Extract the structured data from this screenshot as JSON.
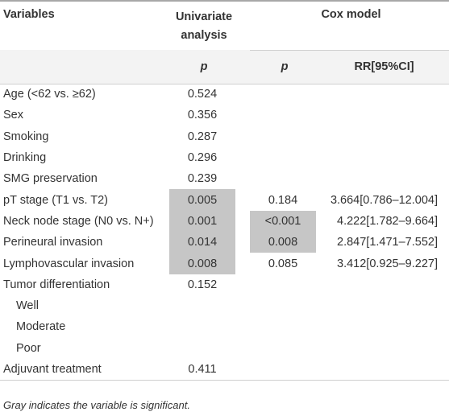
{
  "header": {
    "variables": "Variables",
    "univariate": "Univariate analysis",
    "cox": "Cox model",
    "p_univariate": "p",
    "p_cox": "p",
    "rr": "RR[95%CI]"
  },
  "rows": [
    {
      "variable": "Age (<62 vs. ≥62)",
      "p_uni": "0.524",
      "p_cox": "",
      "rr": "",
      "sig_uni": false,
      "sig_cox": false
    },
    {
      "variable": "Sex",
      "p_uni": "0.356",
      "p_cox": "",
      "rr": "",
      "sig_uni": false,
      "sig_cox": false
    },
    {
      "variable": "Smoking",
      "p_uni": "0.287",
      "p_cox": "",
      "rr": "",
      "sig_uni": false,
      "sig_cox": false
    },
    {
      "variable": "Drinking",
      "p_uni": "0.296",
      "p_cox": "",
      "rr": "",
      "sig_uni": false,
      "sig_cox": false
    },
    {
      "variable": "SMG preservation",
      "p_uni": "0.239",
      "p_cox": "",
      "rr": "",
      "sig_uni": false,
      "sig_cox": false
    },
    {
      "variable": "pT stage (T1 vs. T2)",
      "p_uni": "0.005",
      "p_cox": "0.184",
      "rr": "3.664[0.786–12.004]",
      "sig_uni": true,
      "sig_cox": false
    },
    {
      "variable": "Neck node stage (N0 vs. N+)",
      "p_uni": "0.001",
      "p_cox": "<0.001",
      "rr": "4.222[1.782–9.664]",
      "sig_uni": true,
      "sig_cox": true
    },
    {
      "variable": "Perineural invasion",
      "p_uni": "0.014",
      "p_cox": "0.008",
      "rr": "2.847[1.471–7.552]",
      "sig_uni": true,
      "sig_cox": true
    },
    {
      "variable": "Lymphovascular invasion",
      "p_uni": "0.008",
      "p_cox": "0.085",
      "rr": "3.412[0.925–9.227]",
      "sig_uni": true,
      "sig_cox": false
    },
    {
      "variable": "Tumor differentiation",
      "p_uni": "0.152",
      "p_cox": "",
      "rr": "",
      "sig_uni": false,
      "sig_cox": false
    },
    {
      "variable": "Well",
      "p_uni": "",
      "p_cox": "",
      "rr": "",
      "sig_uni": false,
      "sig_cox": false,
      "sub": true
    },
    {
      "variable": "Moderate",
      "p_uni": "",
      "p_cox": "",
      "rr": "",
      "sig_uni": false,
      "sig_cox": false,
      "sub": true
    },
    {
      "variable": "Poor",
      "p_uni": "",
      "p_cox": "",
      "rr": "",
      "sig_uni": false,
      "sig_cox": false,
      "sub": true
    },
    {
      "variable": "Adjuvant treatment",
      "p_uni": "0.411",
      "p_cox": "",
      "rr": "",
      "sig_uni": false,
      "sig_cox": false
    }
  ],
  "footnote": "Gray indicates the variable is significant.",
  "colors": {
    "significant": "#c6c6c6",
    "subheader_bg": "#f3f3f3"
  }
}
